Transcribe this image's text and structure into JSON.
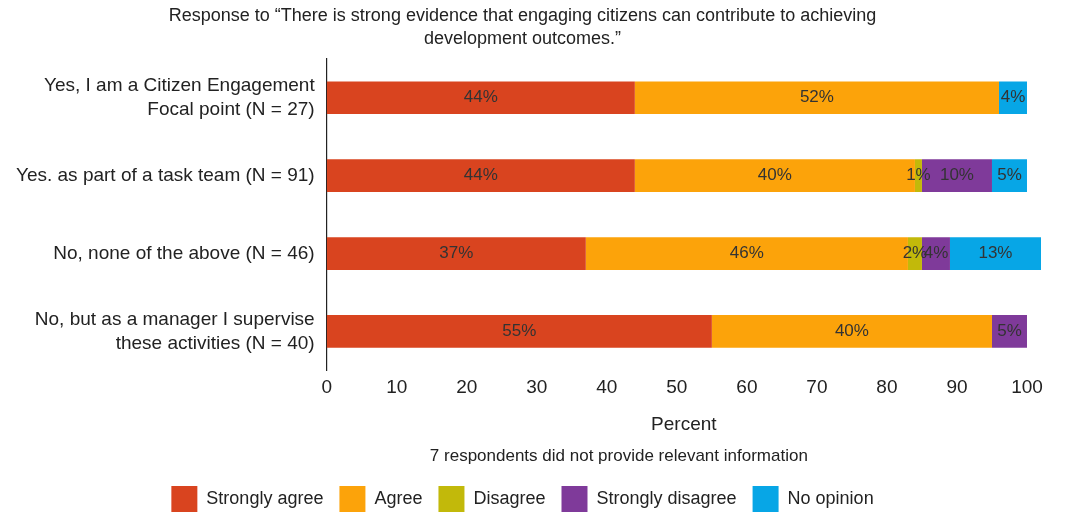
{
  "chart_data": {
    "type": "bar",
    "orientation": "horizontal",
    "stacked": true,
    "title": "Response to “There is strong evidence that engaging citizens can contribute to achieving development outcomes.”",
    "xlabel": "Percent",
    "annotations": [
      "7 respondents did not provide relevant information"
    ],
    "categories": [
      "Yes, I am a Citizen Engagement Focal point (N = 27)",
      "Yes. as part of a task team (N = 91)",
      "No, none of the above (N = 46)",
      "No, but as a manager I supervise these activities (N = 40)"
    ],
    "series": [
      {
        "name": "Strongly agree",
        "color": "#d9441f",
        "values": [
          44,
          44,
          37,
          55
        ],
        "value_labels": [
          "44%",
          "44%",
          "37%",
          "55%"
        ]
      },
      {
        "name": "Agree",
        "color": "#fca30a",
        "values": [
          52,
          40,
          46,
          40
        ],
        "value_labels": [
          "52%",
          "40%",
          "46%",
          "40%"
        ]
      },
      {
        "name": "Disagree",
        "color": "#c2b90a",
        "values": [
          null,
          1,
          2,
          null
        ],
        "value_labels": [
          null,
          "1%",
          "2%",
          null
        ]
      },
      {
        "name": "Strongly disagree",
        "color": "#7f3a9a",
        "values": [
          null,
          10,
          4,
          5
        ],
        "value_labels": [
          null,
          "10%",
          "4%",
          "5%"
        ]
      },
      {
        "name": "No opinion",
        "color": "#07a6e6",
        "values": [
          4,
          5,
          13,
          null
        ],
        "value_labels": [
          "4%",
          "5%",
          "13%",
          null
        ]
      }
    ],
    "xlim": [
      0,
      102
    ],
    "xticks": [
      0,
      10,
      20,
      30,
      40,
      50,
      60,
      70,
      80,
      90,
      100
    ],
    "grid": false,
    "legend": "bottom"
  }
}
